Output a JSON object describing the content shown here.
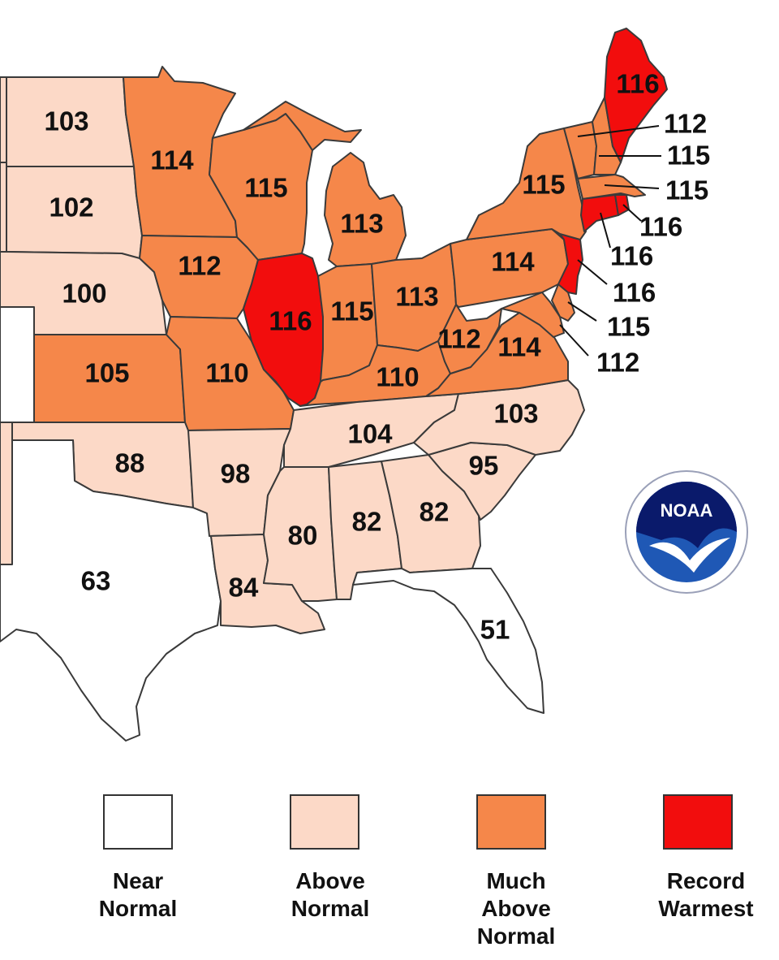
{
  "colors": {
    "near_normal": "#ffffff",
    "above_normal": "#fcd9c7",
    "much_above_normal": "#f5874a",
    "record_warmest": "#f20d0d",
    "border": "#3a3a3a"
  },
  "states": [
    {
      "id": "ND",
      "rank": "103",
      "cat": "above_normal"
    },
    {
      "id": "SD",
      "rank": "102",
      "cat": "above_normal"
    },
    {
      "id": "NE",
      "rank": "100",
      "cat": "above_normal"
    },
    {
      "id": "KS",
      "rank": "105",
      "cat": "much_above_normal"
    },
    {
      "id": "OK",
      "rank": "88",
      "cat": "above_normal"
    },
    {
      "id": "TX",
      "rank": "63",
      "cat": "near_normal"
    },
    {
      "id": "MN",
      "rank": "114",
      "cat": "much_above_normal"
    },
    {
      "id": "IA",
      "rank": "112",
      "cat": "much_above_normal"
    },
    {
      "id": "MO",
      "rank": "110",
      "cat": "much_above_normal"
    },
    {
      "id": "AR",
      "rank": "98",
      "cat": "above_normal"
    },
    {
      "id": "LA",
      "rank": "84",
      "cat": "above_normal"
    },
    {
      "id": "WI",
      "rank": "115",
      "cat": "much_above_normal"
    },
    {
      "id": "IL",
      "rank": "116",
      "cat": "record_warmest"
    },
    {
      "id": "MI",
      "rank": "113",
      "cat": "much_above_normal"
    },
    {
      "id": "IN",
      "rank": "115",
      "cat": "much_above_normal"
    },
    {
      "id": "OH",
      "rank": "113",
      "cat": "much_above_normal"
    },
    {
      "id": "KY",
      "rank": "110",
      "cat": "much_above_normal"
    },
    {
      "id": "TN",
      "rank": "104",
      "cat": "above_normal"
    },
    {
      "id": "MS",
      "rank": "80",
      "cat": "above_normal"
    },
    {
      "id": "AL",
      "rank": "82",
      "cat": "above_normal"
    },
    {
      "id": "GA",
      "rank": "82",
      "cat": "above_normal"
    },
    {
      "id": "FL",
      "rank": "51",
      "cat": "near_normal"
    },
    {
      "id": "SC",
      "rank": "95",
      "cat": "above_normal"
    },
    {
      "id": "NC",
      "rank": "103",
      "cat": "above_normal"
    },
    {
      "id": "VA",
      "rank": "114",
      "cat": "much_above_normal"
    },
    {
      "id": "WV",
      "rank": "112",
      "cat": "much_above_normal"
    },
    {
      "id": "PA",
      "rank": "114",
      "cat": "much_above_normal"
    },
    {
      "id": "NY",
      "rank": "115",
      "cat": "much_above_normal"
    },
    {
      "id": "ME",
      "rank": "116",
      "cat": "record_warmest"
    },
    {
      "id": "VT",
      "rank": "112",
      "cat": "much_above_normal"
    },
    {
      "id": "NH",
      "rank": "115",
      "cat": "much_above_normal"
    },
    {
      "id": "MA",
      "rank": "115",
      "cat": "much_above_normal"
    },
    {
      "id": "RI",
      "rank": "116",
      "cat": "record_warmest"
    },
    {
      "id": "CT",
      "rank": "116",
      "cat": "record_warmest"
    },
    {
      "id": "NJ",
      "rank": "116",
      "cat": "record_warmest"
    },
    {
      "id": "DE",
      "rank": "115",
      "cat": "much_above_normal"
    },
    {
      "id": "MD",
      "rank": "112",
      "cat": "much_above_normal"
    }
  ],
  "logo": {
    "text": "NOAA",
    "icon": "noaa-seal-icon"
  },
  "legend": [
    {
      "cat": "near_normal",
      "lines": [
        "Near",
        "Normal"
      ]
    },
    {
      "cat": "above_normal",
      "lines": [
        "Above",
        "Normal"
      ]
    },
    {
      "cat": "much_above_normal",
      "lines": [
        "Much",
        "Above",
        "Normal"
      ]
    },
    {
      "cat": "record_warmest",
      "lines": [
        "Record",
        "Warmest"
      ]
    }
  ]
}
